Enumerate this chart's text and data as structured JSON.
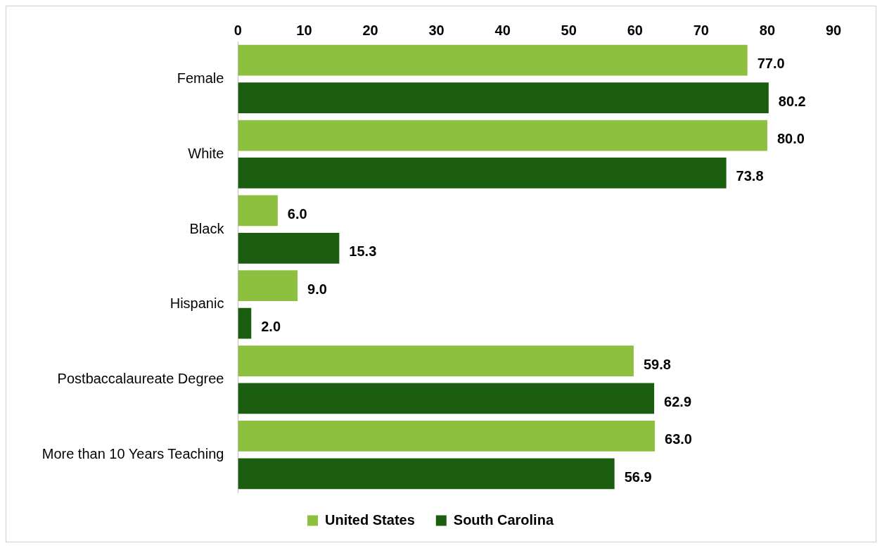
{
  "chart_data": {
    "type": "bar",
    "orientation": "horizontal",
    "categories": [
      "Female",
      "White",
      "Black",
      "Hispanic",
      "Postbaccalaureate Degree",
      "More than 10 Years Teaching"
    ],
    "series": [
      {
        "name": "United States",
        "color": "#8dc03f",
        "values": [
          77.0,
          80.0,
          6.0,
          9.0,
          59.8,
          63.0
        ],
        "value_labels": [
          "77.0",
          "80.0",
          "6.0",
          "9.0",
          "59.8",
          "63.0"
        ]
      },
      {
        "name": "South Carolina",
        "color": "#1b5e0f",
        "values": [
          80.2,
          73.8,
          15.3,
          2.0,
          62.9,
          56.9
        ],
        "value_labels": [
          "80.2",
          "73.8",
          "15.3",
          "2.0",
          "62.9",
          "56.9"
        ]
      }
    ],
    "xlim": [
      0,
      90
    ],
    "xticks": [
      0,
      10,
      20,
      30,
      40,
      50,
      60,
      70,
      80,
      90
    ],
    "grid": false,
    "legend": "bottom"
  }
}
